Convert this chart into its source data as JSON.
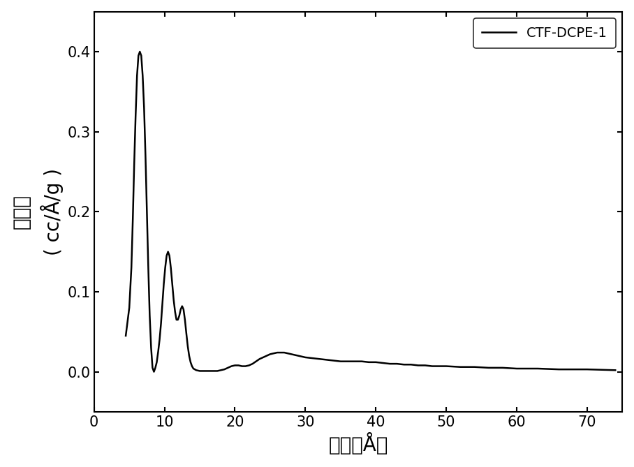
{
  "title": "",
  "xlabel": "孔径（Å）",
  "ylabel_line1": "孔体积",
  "ylabel_line2": "( cc/Å/g )",
  "legend_label": "CTF-DCPE-1",
  "line_color": "#000000",
  "line_width": 1.8,
  "xlim": [
    0,
    75
  ],
  "ylim": [
    -0.05,
    0.45
  ],
  "xticks": [
    0,
    10,
    20,
    30,
    40,
    50,
    60,
    70
  ],
  "yticks": [
    0.0,
    0.1,
    0.2,
    0.3,
    0.4
  ],
  "ytick_labels": [
    "0.0",
    "0.1",
    "0.2",
    "0.3",
    "0.4"
  ],
  "x": [
    4.5,
    5.0,
    5.3,
    5.5,
    5.7,
    5.9,
    6.1,
    6.3,
    6.5,
    6.7,
    6.9,
    7.1,
    7.3,
    7.5,
    7.7,
    7.9,
    8.1,
    8.3,
    8.5,
    8.7,
    8.9,
    9.1,
    9.3,
    9.5,
    9.7,
    9.9,
    10.1,
    10.3,
    10.5,
    10.7,
    10.9,
    11.1,
    11.3,
    11.5,
    11.7,
    11.9,
    12.1,
    12.3,
    12.5,
    12.7,
    12.9,
    13.1,
    13.3,
    13.5,
    13.7,
    13.9,
    14.1,
    14.5,
    15.0,
    15.5,
    16.0,
    16.5,
    17.0,
    17.5,
    18.0,
    18.5,
    19.0,
    19.5,
    20.0,
    20.5,
    21.0,
    21.5,
    22.0,
    22.5,
    23.0,
    23.5,
    24.0,
    24.5,
    25.0,
    25.5,
    26.0,
    26.5,
    27.0,
    27.5,
    28.0,
    28.5,
    29.0,
    29.5,
    30.0,
    31.0,
    32.0,
    33.0,
    34.0,
    35.0,
    36.0,
    37.0,
    38.0,
    39.0,
    40.0,
    41.0,
    42.0,
    43.0,
    44.0,
    45.0,
    46.0,
    47.0,
    48.0,
    50.0,
    52.0,
    54.0,
    56.0,
    58.0,
    60.0,
    63.0,
    66.0,
    70.0,
    74.0
  ],
  "y": [
    0.045,
    0.08,
    0.13,
    0.19,
    0.26,
    0.32,
    0.37,
    0.395,
    0.4,
    0.395,
    0.37,
    0.33,
    0.27,
    0.2,
    0.13,
    0.07,
    0.03,
    0.005,
    0.0,
    0.005,
    0.012,
    0.025,
    0.04,
    0.06,
    0.085,
    0.11,
    0.13,
    0.145,
    0.15,
    0.145,
    0.13,
    0.11,
    0.09,
    0.075,
    0.065,
    0.065,
    0.07,
    0.078,
    0.082,
    0.078,
    0.065,
    0.048,
    0.032,
    0.02,
    0.012,
    0.007,
    0.004,
    0.002,
    0.001,
    0.001,
    0.001,
    0.001,
    0.001,
    0.001,
    0.002,
    0.003,
    0.005,
    0.007,
    0.008,
    0.008,
    0.007,
    0.007,
    0.008,
    0.01,
    0.013,
    0.016,
    0.018,
    0.02,
    0.022,
    0.023,
    0.024,
    0.024,
    0.024,
    0.023,
    0.022,
    0.021,
    0.02,
    0.019,
    0.018,
    0.017,
    0.016,
    0.015,
    0.014,
    0.013,
    0.013,
    0.013,
    0.013,
    0.012,
    0.012,
    0.011,
    0.01,
    0.01,
    0.009,
    0.009,
    0.008,
    0.008,
    0.007,
    0.007,
    0.006,
    0.006,
    0.005,
    0.005,
    0.004,
    0.004,
    0.003,
    0.003,
    0.002
  ]
}
